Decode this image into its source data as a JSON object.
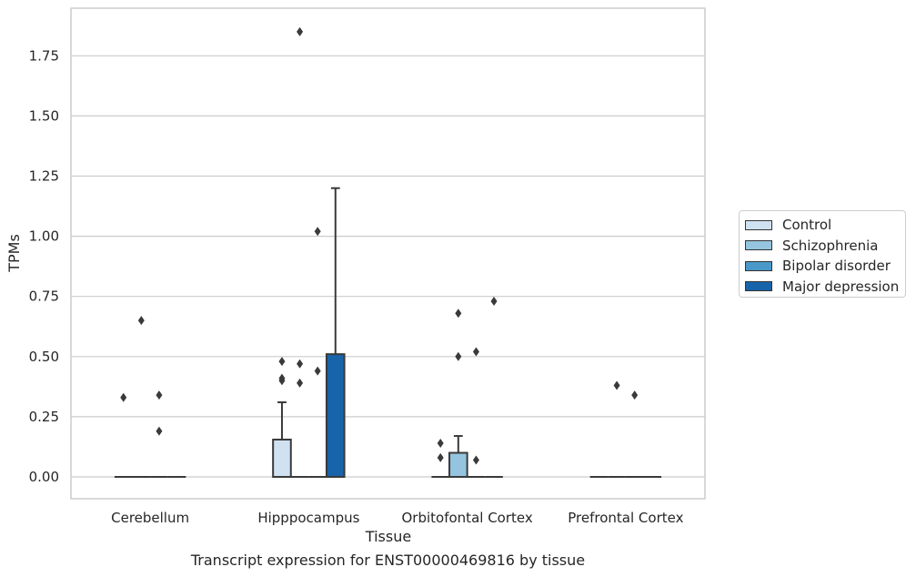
{
  "chart_data": {
    "type": "box",
    "title": "",
    "xlabel": "Tissue",
    "ylabel": "TPMs",
    "ylim": [
      -0.09,
      1.95
    ],
    "yticks": [
      "0.00",
      "0.25",
      "0.50",
      "0.75",
      "1.00",
      "1.25",
      "1.50",
      "1.75"
    ],
    "ytick_values": [
      0,
      0.25,
      0.5,
      0.75,
      1.0,
      1.25,
      1.5,
      1.75
    ],
    "grid": true,
    "legend_position": "right",
    "categories": [
      "Cerebellum",
      "Hipppocampus",
      "Orbitofontal Cortex",
      "Prefrontal Cortex"
    ],
    "series": [
      {
        "name": "Control",
        "color": "#d0e1f2",
        "boxes": [
          {
            "category": "Cerebellum",
            "q1": 0,
            "median": 0,
            "q3": 0,
            "whisker_low": 0,
            "whisker_high": 0,
            "outliers": [
              0.33
            ]
          },
          {
            "category": "Hipppocampus",
            "q1": 0,
            "median": 0,
            "q3": 0.155,
            "whisker_low": 0,
            "whisker_high": 0.31,
            "outliers": [
              0.4,
              0.41,
              0.48
            ]
          },
          {
            "category": "Orbitofontal Cortex",
            "q1": 0,
            "median": 0,
            "q3": 0,
            "whisker_low": 0,
            "whisker_high": 0,
            "outliers": [
              0.08,
              0.14
            ]
          },
          {
            "category": "Prefrontal Cortex",
            "q1": 0,
            "median": 0,
            "q3": 0,
            "whisker_low": 0,
            "whisker_high": 0,
            "outliers": []
          }
        ]
      },
      {
        "name": "Schizophrenia",
        "color": "#94c4df",
        "boxes": [
          {
            "category": "Cerebellum",
            "q1": 0,
            "median": 0,
            "q3": 0,
            "whisker_low": 0,
            "whisker_high": 0,
            "outliers": [
              0.65
            ]
          },
          {
            "category": "Hipppocampus",
            "q1": 0,
            "median": 0,
            "q3": 0,
            "whisker_low": 0,
            "whisker_high": 0,
            "outliers": [
              0.39,
              0.47,
              1.85
            ]
          },
          {
            "category": "Orbitofontal Cortex",
            "q1": 0,
            "median": 0,
            "q3": 0.1,
            "whisker_low": 0,
            "whisker_high": 0.17,
            "outliers": [
              0.5,
              0.68
            ]
          },
          {
            "category": "Prefrontal Cortex",
            "q1": 0,
            "median": 0,
            "q3": 0,
            "whisker_low": 0,
            "whisker_high": 0,
            "outliers": [
              0.38
            ]
          }
        ]
      },
      {
        "name": "Bipolar disorder",
        "color": "#4a98c9",
        "boxes": [
          {
            "category": "Cerebellum",
            "q1": 0,
            "median": 0,
            "q3": 0,
            "whisker_low": 0,
            "whisker_high": 0,
            "outliers": [
              0.19,
              0.34
            ]
          },
          {
            "category": "Hipppocampus",
            "q1": 0,
            "median": 0,
            "q3": 0,
            "whisker_low": 0,
            "whisker_high": 0,
            "outliers": [
              0.44,
              1.02
            ]
          },
          {
            "category": "Orbitofontal Cortex",
            "q1": 0,
            "median": 0,
            "q3": 0,
            "whisker_low": 0,
            "whisker_high": 0,
            "outliers": [
              0.07,
              0.52
            ]
          },
          {
            "category": "Prefrontal Cortex",
            "q1": 0,
            "median": 0,
            "q3": 0,
            "whisker_low": 0,
            "whisker_high": 0,
            "outliers": [
              0.34
            ]
          }
        ]
      },
      {
        "name": "Major depression",
        "color": "#1764ab",
        "boxes": [
          {
            "category": "Cerebellum",
            "q1": 0,
            "median": 0,
            "q3": 0,
            "whisker_low": 0,
            "whisker_high": 0,
            "outliers": []
          },
          {
            "category": "Hipppocampus",
            "q1": 0,
            "median": 0,
            "q3": 0.51,
            "whisker_low": 0,
            "whisker_high": 1.2,
            "outliers": []
          },
          {
            "category": "Orbitofontal Cortex",
            "q1": 0,
            "median": 0,
            "q3": 0,
            "whisker_low": 0,
            "whisker_high": 0,
            "outliers": [
              0.73
            ]
          },
          {
            "category": "Prefrontal Cortex",
            "q1": 0,
            "median": 0,
            "q3": 0,
            "whisker_low": 0,
            "whisker_high": 0,
            "outliers": []
          }
        ]
      }
    ]
  },
  "caption": "Transcript expression for ENST00000469816 by tissue",
  "colors": {
    "grid": "#cccccc",
    "frame": "#cccccc",
    "line": "#3a3a3a",
    "outlier": "#3a3a3a"
  }
}
